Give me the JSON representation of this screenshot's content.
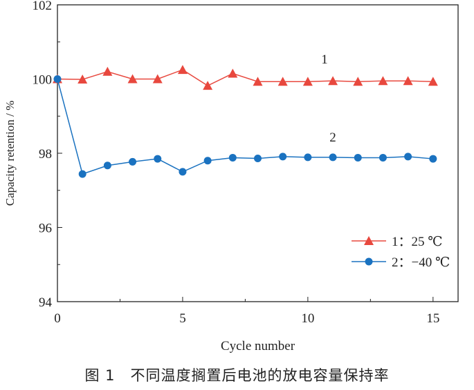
{
  "chart_data": {
    "type": "line",
    "title": "",
    "xlabel": "Cycle number",
    "ylabel": "Capacity retention / %",
    "xlim": [
      0,
      16
    ],
    "ylim": [
      94,
      102
    ],
    "xticks": [
      0,
      5,
      10,
      15
    ],
    "yticks": [
      94,
      96,
      98,
      100,
      102
    ],
    "grid": false,
    "legend_position": "bottom-right",
    "x": [
      0,
      1,
      2,
      3,
      4,
      5,
      6,
      7,
      8,
      9,
      10,
      11,
      12,
      13,
      14,
      15
    ],
    "series": [
      {
        "name": "1：25 ℃",
        "label": "1",
        "color": "#e8483e",
        "marker": "triangle",
        "values": [
          100.0,
          99.99,
          100.2,
          100.0,
          100.0,
          100.25,
          99.82,
          100.15,
          99.93,
          99.93,
          99.93,
          99.95,
          99.93,
          99.95,
          99.95,
          99.93
        ]
      },
      {
        "name": "2：−40 ℃",
        "label": "2",
        "color": "#1a72c0",
        "marker": "circle",
        "values": [
          100.0,
          97.44,
          97.67,
          97.77,
          97.85,
          97.5,
          97.8,
          97.88,
          97.86,
          97.91,
          97.89,
          97.89,
          97.88,
          97.88,
          97.91,
          97.85
        ]
      }
    ]
  },
  "caption": "图 1　不同温度搁置后电池的放电容量保持率"
}
